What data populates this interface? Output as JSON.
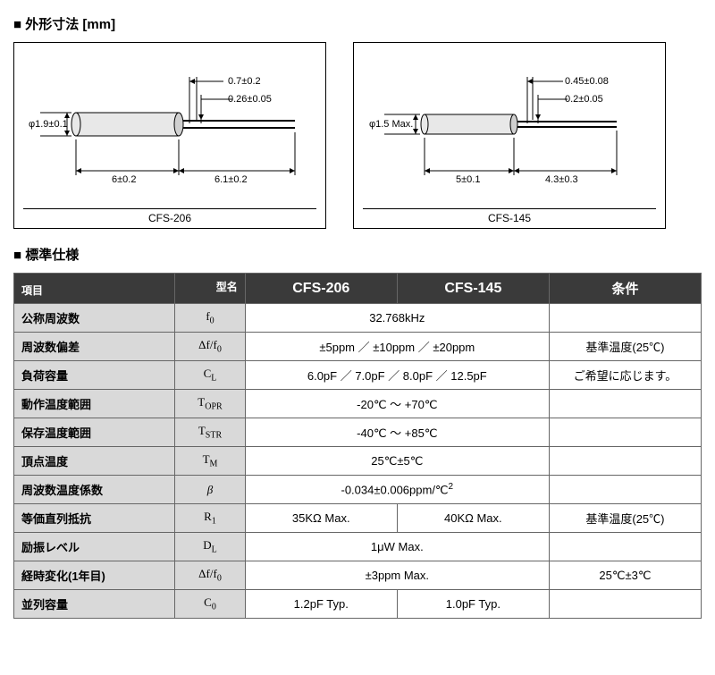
{
  "titles": {
    "dimensions": "■ 外形寸法 [mm]",
    "spec": "■ 標準仕様"
  },
  "diagrams": {
    "left": {
      "caption": "CFS-206",
      "dia_label": "φ1.9±0.1",
      "body_len": "6±0.2",
      "lead_len": "6.1±0.2",
      "lead_gap": "0.7±0.2",
      "lead_thick": "0.26±0.05"
    },
    "right": {
      "caption": "CFS-145",
      "dia_label": "φ1.5 Max.",
      "body_len": "5±0.1",
      "lead_len": "4.3±0.3",
      "lead_gap": "0.45±0.08",
      "lead_thick": "0.2±0.05"
    }
  },
  "table": {
    "headers": {
      "item": "項目",
      "model": "型名",
      "c1": "CFS-206",
      "c2": "CFS-145",
      "cond": "条件"
    },
    "rows": [
      {
        "param": "公称周波数",
        "sym": "f<span class='sub'>0</span>",
        "val": "32.768kHz",
        "span": 2,
        "cond": ""
      },
      {
        "param": "周波数偏差",
        "sym": "Δf/f<span class='sub'>0</span>",
        "val": "±5ppm ／ ±10ppm ／ ±20ppm",
        "span": 2,
        "cond": "基準温度(25℃)"
      },
      {
        "param": "負荷容量",
        "sym": "C<span class='sub'>L</span>",
        "val": "6.0pF ／ 7.0pF ／ 8.0pF ／ 12.5pF",
        "span": 2,
        "cond": "ご希望に応じます。"
      },
      {
        "param": "動作温度範囲",
        "sym": "T<span class='sub'>OPR</span>",
        "val": "-20℃ ～ +70℃",
        "span": 2,
        "cond": ""
      },
      {
        "param": "保存温度範囲",
        "sym": "T<span class='sub'>STR</span>",
        "val": "-40℃ ～ +85℃",
        "span": 2,
        "cond": ""
      },
      {
        "param": "頂点温度",
        "sym": "T<span class='sub'>M</span>",
        "val": "25℃±5℃",
        "span": 2,
        "cond": ""
      },
      {
        "param": "周波数温度係数",
        "sym": "<i>β</i>",
        "val": "-0.034±0.006ppm/℃<span class='sup'>2</span>",
        "span": 2,
        "cond": ""
      },
      {
        "param": "等価直列抵抗",
        "sym": "R<span class='sub'>1</span>",
        "v1": "35KΩ Max.",
        "v2": "40KΩ Max.",
        "span": 1,
        "cond": "基準温度(25℃)"
      },
      {
        "param": "励振レベル",
        "sym": "D<span class='sub'>L</span>",
        "val": "1μW Max.",
        "span": 2,
        "cond": ""
      },
      {
        "param": "経時変化(1年目)",
        "sym": "Δf/f<span class='sub'>0</span>",
        "val": "±3ppm Max.",
        "span": 2,
        "cond": "25℃±3℃"
      },
      {
        "param": "並列容量",
        "sym": "C<span class='sub'>0</span>",
        "v1": "1.2pF Typ.",
        "v2": "1.0pF Typ.",
        "span": 1,
        "cond": ""
      }
    ]
  },
  "style": {
    "diagram_stroke": "#000000",
    "body_fill": "#e8e8e8",
    "line_color": "#000000"
  }
}
